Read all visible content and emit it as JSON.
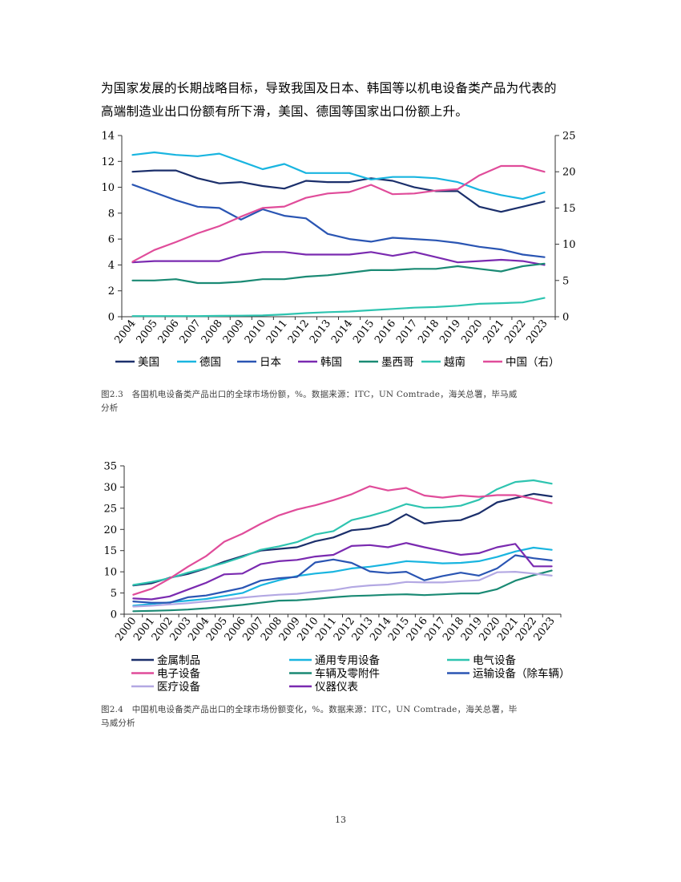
{
  "intro_lines": [
    "为国家发展的长期战略目标，导致我国及日本、韩国等以机电设备类产品为代表的",
    "高端制造业出口份额有所下滑，美国、德国等国家出口份额上升。"
  ],
  "figure1_caption": [
    "图2.3　各国机电设备类产品出口的全球市场份额，%。数据来源：ITC，UN Comtrade，海关总署，毕马威",
    "分析"
  ],
  "figure2_caption": [
    "图2.4　中国机电设备类产品出口的全球市场份额变化，%。数据来源：ITC，UN Comtrade，海关总署，毕",
    "马威分析"
  ],
  "page_number": "13",
  "chart_data": [
    {
      "type": "line",
      "title": "",
      "xlabel": "",
      "ylabel": "",
      "ylabel_right": "",
      "x": [
        "2004",
        "2005",
        "2006",
        "2007",
        "2008",
        "2009",
        "2010",
        "2011",
        "2012",
        "2013",
        "2014",
        "2015",
        "2016",
        "2017",
        "2018",
        "2019",
        "2020",
        "2021",
        "2022",
        "2023"
      ],
      "ylim": [
        0,
        14
      ],
      "yticks": [
        "0",
        "2",
        "4",
        "6",
        "8",
        "10",
        "12",
        "14"
      ],
      "ylim_right": [
        0,
        25
      ],
      "yticks_right": [
        "0",
        "5",
        "10",
        "15",
        "20",
        "25"
      ],
      "grid": false,
      "legend_position": "bottom",
      "series": [
        {
          "name": "美国",
          "color": "#1b2f6b",
          "axis": "left",
          "values": [
            11.2,
            11.3,
            11.3,
            10.7,
            10.3,
            10.4,
            10.1,
            9.9,
            10.5,
            10.4,
            10.4,
            10.7,
            10.5,
            10.0,
            9.7,
            9.7,
            8.5,
            8.1,
            8.5,
            8.9
          ]
        },
        {
          "name": "德国",
          "color": "#19b5e0",
          "axis": "left",
          "values": [
            12.5,
            12.7,
            12.5,
            12.4,
            12.6,
            12.0,
            11.4,
            11.8,
            11.1,
            11.1,
            11.1,
            10.6,
            10.8,
            10.8,
            10.7,
            10.4,
            9.8,
            9.4,
            9.1,
            9.6
          ]
        },
        {
          "name": "日本",
          "color": "#2a55b3",
          "axis": "left",
          "values": [
            10.2,
            9.6,
            9.0,
            8.5,
            8.4,
            7.5,
            8.3,
            7.8,
            7.6,
            6.4,
            6.0,
            5.8,
            6.1,
            6.0,
            5.9,
            5.7,
            5.4,
            5.2,
            4.8,
            4.6
          ]
        },
        {
          "name": "韩国",
          "color": "#7a2ab0",
          "axis": "left",
          "values": [
            4.2,
            4.3,
            4.3,
            4.3,
            4.3,
            4.8,
            5.0,
            5.0,
            4.8,
            4.8,
            4.8,
            5.0,
            4.7,
            5.0,
            4.6,
            4.2,
            4.3,
            4.4,
            4.3,
            4.0
          ]
        },
        {
          "name": "墨西哥",
          "color": "#1a8a74",
          "axis": "left",
          "values": [
            2.8,
            2.8,
            2.9,
            2.6,
            2.6,
            2.7,
            2.9,
            2.9,
            3.1,
            3.2,
            3.4,
            3.6,
            3.6,
            3.7,
            3.7,
            3.9,
            3.7,
            3.5,
            3.9,
            4.1
          ]
        },
        {
          "name": "越南",
          "color": "#2ec4b0",
          "axis": "left",
          "values": [
            0.05,
            0.05,
            0.05,
            0.05,
            0.07,
            0.08,
            0.1,
            0.18,
            0.28,
            0.35,
            0.4,
            0.5,
            0.6,
            0.7,
            0.75,
            0.85,
            1.0,
            1.05,
            1.1,
            1.45
          ]
        },
        {
          "name": "中国（右）",
          "color": "#e04c9a",
          "axis": "right",
          "values": [
            7.6,
            9.2,
            10.3,
            11.5,
            12.5,
            13.8,
            15.0,
            15.2,
            16.4,
            17.0,
            17.2,
            18.2,
            16.9,
            17.0,
            17.4,
            17.6,
            19.5,
            20.8,
            20.8,
            20.0
          ]
        }
      ]
    },
    {
      "type": "line",
      "title": "",
      "xlabel": "",
      "ylabel": "",
      "x": [
        "2000",
        "2001",
        "2002",
        "2003",
        "2004",
        "2005",
        "2006",
        "2007",
        "2008",
        "2009",
        "2010",
        "2011",
        "2012",
        "2013",
        "2014",
        "2015",
        "2016",
        "2017",
        "2018",
        "2019",
        "2020",
        "2021",
        "2022",
        "2023"
      ],
      "ylim": [
        0,
        35
      ],
      "yticks": [
        "0",
        "5",
        "10",
        "15",
        "20",
        "25",
        "30",
        "35"
      ],
      "grid": false,
      "legend_position": "bottom",
      "series": [
        {
          "name": "金属制品",
          "color": "#1b2f6b",
          "values": [
            6.8,
            7.3,
            8.6,
            9.5,
            10.8,
            12.4,
            13.7,
            15.0,
            15.4,
            15.8,
            17.2,
            18.1,
            19.8,
            20.2,
            21.2,
            23.6,
            21.4,
            21.9,
            22.2,
            23.8,
            26.4,
            27.4,
            28.4,
            27.8
          ]
        },
        {
          "name": "通用专用设备",
          "color": "#19b5e0",
          "values": [
            2.0,
            2.4,
            2.8,
            3.2,
            3.6,
            4.3,
            5.0,
            6.8,
            8.0,
            9.0,
            9.6,
            10.0,
            10.8,
            11.2,
            11.8,
            12.5,
            12.3,
            12.0,
            12.1,
            12.5,
            13.5,
            14.8,
            15.7,
            15.2
          ]
        },
        {
          "name": "电气设备",
          "color": "#2ec4b0",
          "values": [
            6.9,
            7.6,
            8.5,
            9.8,
            10.9,
            12.1,
            13.5,
            15.2,
            16.0,
            17.0,
            18.8,
            19.6,
            22.2,
            23.2,
            24.4,
            26.0,
            25.1,
            25.2,
            25.6,
            27.0,
            29.5,
            31.2,
            31.6,
            30.8
          ]
        },
        {
          "name": "电子设备",
          "color": "#e04c9a",
          "values": [
            4.6,
            6.0,
            8.4,
            11.2,
            13.7,
            17.1,
            19.0,
            21.3,
            23.3,
            24.7,
            25.7,
            26.9,
            28.3,
            30.2,
            29.2,
            29.8,
            28.0,
            27.5,
            28.0,
            27.7,
            28.1,
            28.1,
            27.2,
            26.2
          ]
        },
        {
          "name": "车辆及零附件",
          "color": "#1a8a74",
          "values": [
            0.7,
            0.8,
            0.9,
            1.1,
            1.4,
            1.8,
            2.2,
            2.7,
            3.2,
            3.3,
            3.6,
            4.0,
            4.3,
            4.4,
            4.6,
            4.7,
            4.5,
            4.7,
            4.9,
            4.9,
            5.9,
            7.9,
            9.2,
            10.3
          ]
        },
        {
          "name": "运输设备（除车辆）",
          "color": "#2a55b3",
          "values": [
            3.0,
            2.7,
            2.7,
            4.0,
            4.4,
            5.3,
            6.2,
            7.9,
            8.5,
            8.8,
            12.2,
            12.9,
            12.1,
            10.1,
            9.7,
            10.0,
            8.0,
            9.0,
            9.8,
            9.1,
            10.8,
            13.9,
            13.2,
            12.7
          ]
        },
        {
          "name": "医疗设备",
          "color": "#b3a8e3",
          "values": [
            1.8,
            2.0,
            2.3,
            2.6,
            3.0,
            3.4,
            3.9,
            4.3,
            4.6,
            4.8,
            5.3,
            5.7,
            6.4,
            6.8,
            7.0,
            7.6,
            7.5,
            7.5,
            7.8,
            8.0,
            9.9,
            10.0,
            9.6,
            9.1
          ]
        },
        {
          "name": "仪器仪表",
          "color": "#7a2ab0",
          "values": [
            3.7,
            3.5,
            4.2,
            5.8,
            7.4,
            9.4,
            9.6,
            11.8,
            12.5,
            12.8,
            13.6,
            14.0,
            16.1,
            16.3,
            15.8,
            16.8,
            15.8,
            14.9,
            14.0,
            14.4,
            15.8,
            16.6,
            11.3,
            11.3
          ]
        }
      ]
    }
  ]
}
